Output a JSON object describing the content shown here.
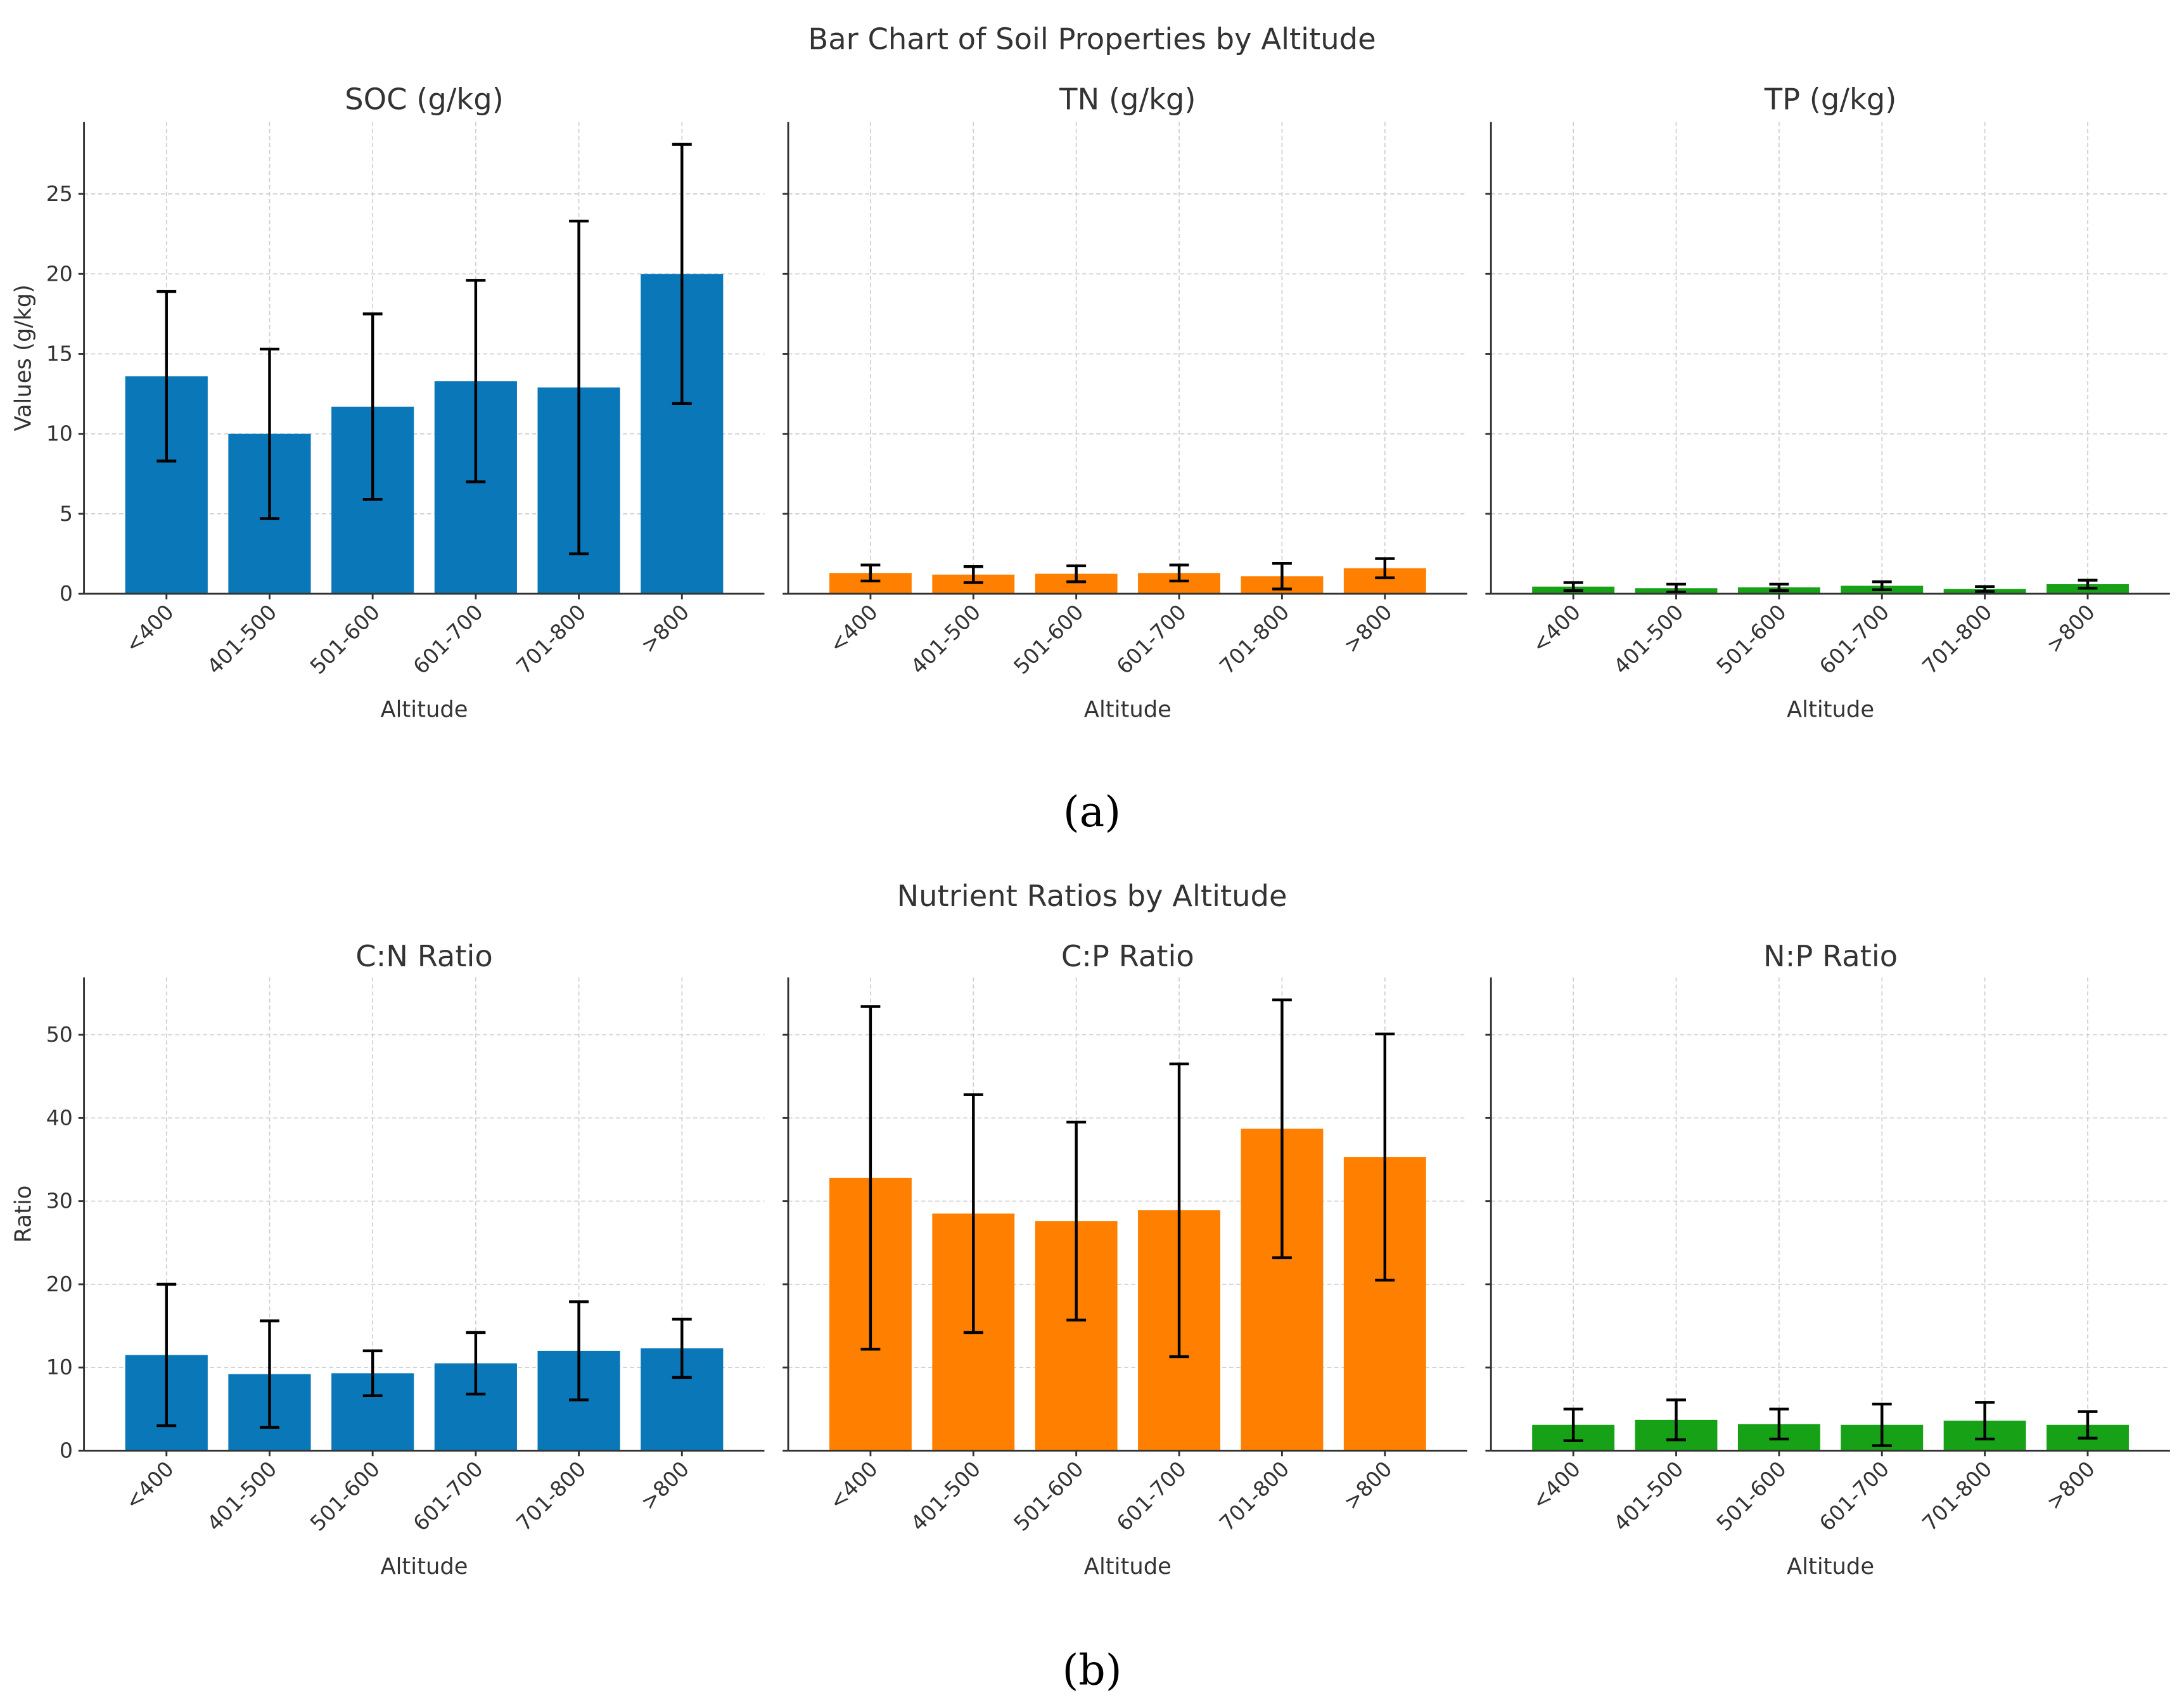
{
  "chart_data": [
    {
      "type": "bar",
      "figure_label": "(a)",
      "suptitle": "Bar Chart of Soil Properties by Altitude",
      "ylabel": "Values (g/kg)",
      "ylim": [
        0,
        29.5
      ],
      "yticks": [
        0,
        5,
        10,
        15,
        20,
        25
      ],
      "grid": true,
      "categories": [
        "<400",
        "401-500",
        "501-600",
        "601-700",
        "701-800",
        ">800"
      ],
      "panels": [
        {
          "title": "SOC (g/kg)",
          "xlabel": "Altitude",
          "color": "#0a78b8",
          "values": [
            13.6,
            10.0,
            11.7,
            13.3,
            12.9,
            20.0
          ],
          "errors": [
            5.3,
            5.3,
            5.8,
            6.3,
            10.4,
            8.1
          ]
        },
        {
          "title": "TN (g/kg)",
          "xlabel": "Altitude",
          "color": "#ff8000",
          "values": [
            1.3,
            1.2,
            1.25,
            1.3,
            1.1,
            1.6
          ],
          "errors": [
            0.5,
            0.5,
            0.5,
            0.5,
            0.8,
            0.6
          ]
        },
        {
          "title": "TP (g/kg)",
          "xlabel": "Altitude",
          "color": "#17a117",
          "values": [
            0.45,
            0.35,
            0.4,
            0.5,
            0.3,
            0.6
          ],
          "errors": [
            0.25,
            0.25,
            0.2,
            0.25,
            0.15,
            0.25
          ]
        }
      ]
    },
    {
      "type": "bar",
      "figure_label": "(b)",
      "suptitle": "Nutrient Ratios by Altitude",
      "ylabel": "Ratio",
      "ylim": [
        0,
        56.9
      ],
      "yticks": [
        0,
        10,
        20,
        30,
        40,
        50
      ],
      "grid": true,
      "categories": [
        "<400",
        "401-500",
        "501-600",
        "601-700",
        "701-800",
        ">800"
      ],
      "panels": [
        {
          "title": "C:N Ratio",
          "xlabel": "Altitude",
          "color": "#0a78b8",
          "values": [
            11.5,
            9.2,
            9.3,
            10.5,
            12.0,
            12.3
          ],
          "errors": [
            8.5,
            6.4,
            2.7,
            3.7,
            5.9,
            3.5
          ]
        },
        {
          "title": "C:P Ratio",
          "xlabel": "Altitude",
          "color": "#ff8000",
          "values": [
            32.8,
            28.5,
            27.6,
            28.9,
            38.7,
            35.3
          ],
          "errors": [
            20.6,
            14.3,
            11.9,
            17.6,
            15.5,
            14.8
          ]
        },
        {
          "title": "N:P Ratio",
          "xlabel": "Altitude",
          "color": "#17a117",
          "values": [
            3.1,
            3.7,
            3.2,
            3.1,
            3.6,
            3.1
          ],
          "errors": [
            1.9,
            2.4,
            1.8,
            2.5,
            2.2,
            1.6
          ]
        }
      ]
    }
  ]
}
